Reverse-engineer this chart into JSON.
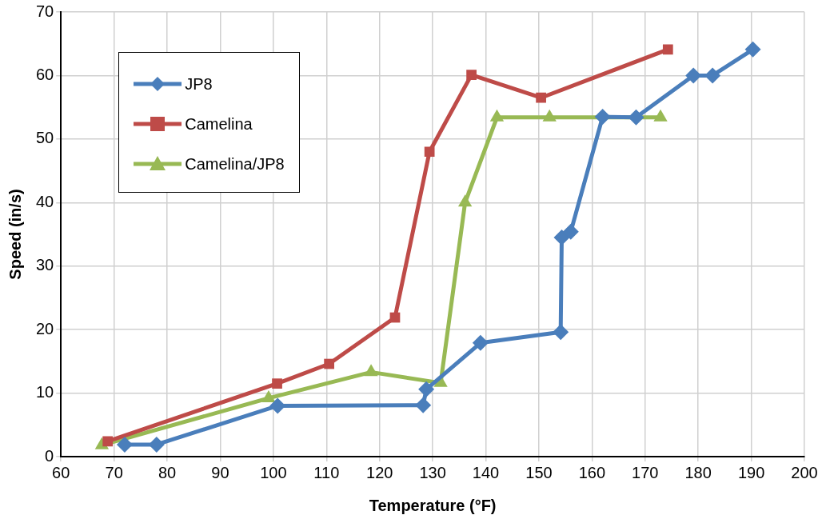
{
  "chart_data": {
    "type": "line",
    "xlabel": "Temperature (°F)",
    "ylabel": "Speed (in/s)",
    "xlim": [
      60,
      200
    ],
    "xticks": [
      60,
      70,
      80,
      90,
      100,
      110,
      120,
      130,
      140,
      150,
      160,
      170,
      180,
      190,
      200
    ],
    "ylim": [
      0,
      70
    ],
    "yticks": [
      0,
      10,
      20,
      30,
      40,
      50,
      60,
      70
    ],
    "grid": true,
    "legend": "top left",
    "line_style": "solid",
    "series": [
      {
        "name": "JP8",
        "color": "#4a7ebb",
        "marker": "diamond",
        "x": [
          72,
          78,
          100.8,
          128.2,
          128.8,
          139,
          154.1,
          154.3,
          156,
          162,
          168.3,
          179.1,
          182.7,
          190.3
        ],
        "values": [
          1.9,
          1.9,
          8,
          8.1,
          10.6,
          17.9,
          19.6,
          34.5,
          35.4,
          53.5,
          53.4,
          60,
          60,
          64.1
        ]
      },
      {
        "name": "Camelina",
        "color": "#be4b48",
        "marker": "square",
        "x": [
          68.8,
          100.7,
          110.5,
          122.9,
          129.4,
          137.3,
          150.4,
          174.3
        ],
        "values": [
          2.4,
          11.5,
          14.6,
          21.9,
          48,
          60.1,
          56.5,
          64.1
        ]
      },
      {
        "name": "Camelina/JP8",
        "color": "#98b954",
        "marker": "triangle",
        "x": [
          67.7,
          99.1,
          118.4,
          131.5,
          136.1,
          142.1,
          152,
          172.9
        ],
        "values": [
          1.8,
          9.2,
          13.3,
          11.6,
          40,
          53.4,
          53.4,
          53.4
        ]
      }
    ]
  }
}
